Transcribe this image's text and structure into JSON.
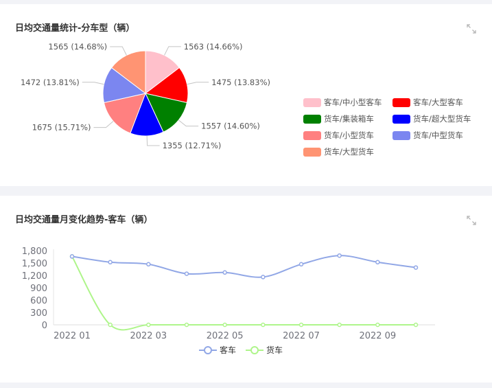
{
  "pie_card": {
    "title": "日均交通量统计-分车型（辆）"
  },
  "line_card": {
    "title": "日均交通量月变化趋势-客车（辆）"
  },
  "chart_data": [
    {
      "type": "pie",
      "slices": [
        {
          "name": "客车/中小型客车",
          "value": 1563,
          "label": "1563 (14.66%)",
          "color": "#ffc0cb"
        },
        {
          "name": "客车/大型客车",
          "value": 1475,
          "label": "1475 (13.83%)",
          "color": "#ff0000"
        },
        {
          "name": "货车/集装箱车",
          "value": 1557,
          "label": "1557 (14.60%)",
          "color": "#008000"
        },
        {
          "name": "货车/超大型货车",
          "value": 1355,
          "label": "1355 (12.71%)",
          "color": "#0000ff"
        },
        {
          "name": "货车/小型货车",
          "value": 1675,
          "label": "1675 (15.71%)",
          "color": "#ff8080"
        },
        {
          "name": "货车/中型货车",
          "value": 1472,
          "label": "1472 (13.81%)",
          "color": "#7b86f0"
        },
        {
          "name": "货车/大型货车",
          "value": 1565,
          "label": "1565 (14.68%)",
          "color": "#ff9473"
        }
      ],
      "legend_position": "right"
    },
    {
      "type": "line",
      "x": [
        "2022-01",
        "2022-02",
        "2022-03",
        "2022-04",
        "2022-05",
        "2022-06",
        "2022-07",
        "2022-08",
        "2022-09",
        "2022-10"
      ],
      "x_tick_labels": [
        "2022 01",
        "2022 03",
        "2022 05",
        "2022 07",
        "2022 09"
      ],
      "y_tick_labels": [
        "0",
        "300",
        "600",
        "900",
        "1,200",
        "1,500",
        "1,800"
      ],
      "ylim": [
        0,
        1800
      ],
      "series": [
        {
          "name": "客车",
          "color": "#91a7e6",
          "values": [
            1660,
            1520,
            1470,
            1240,
            1270,
            1160,
            1470,
            1680,
            1520,
            1390
          ]
        },
        {
          "name": "货车",
          "color": "#aef58a",
          "values": [
            1660,
            0,
            0,
            0,
            0,
            0,
            0,
            0,
            0,
            0
          ]
        }
      ],
      "legend_position": "bottom"
    }
  ]
}
